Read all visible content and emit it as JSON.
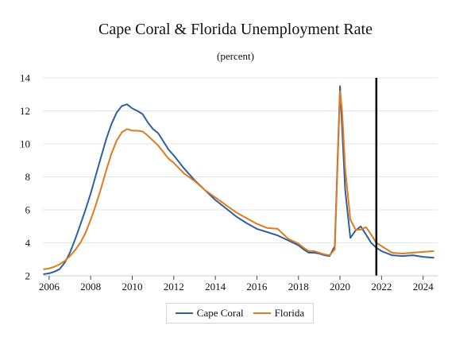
{
  "chart_data": {
    "type": "line",
    "title": "Cape Coral & Florida Unemployment Rate",
    "subtitle": "(percent)",
    "xlim": [
      2005.7,
      2024.7
    ],
    "ylim": [
      2,
      14
    ],
    "x_ticks": [
      2006,
      2008,
      2010,
      2012,
      2014,
      2016,
      2018,
      2020,
      2022,
      2024
    ],
    "y_ticks": [
      2,
      4,
      6,
      8,
      10,
      12,
      14
    ],
    "x_tick_labels": [
      "2006",
      "2008",
      "2010",
      "2012",
      "2014",
      "2016",
      "2018",
      "2020",
      "2022",
      "2024"
    ],
    "y_tick_labels": [
      "2",
      "4",
      "6",
      "8",
      "10",
      "12",
      "14"
    ],
    "grid": "horizontal",
    "legend_position": "bottom",
    "vertical_marker_x": 2021.75,
    "series": [
      {
        "name": "Cape Coral",
        "color": "#2e5fa1",
        "x": [
          2005.75,
          2006.0,
          2006.25,
          2006.5,
          2006.75,
          2007.0,
          2007.25,
          2007.5,
          2007.75,
          2008.0,
          2008.25,
          2008.5,
          2008.75,
          2009.0,
          2009.25,
          2009.5,
          2009.75,
          2010.0,
          2010.25,
          2010.5,
          2010.75,
          2011.0,
          2011.25,
          2011.5,
          2011.75,
          2012.0,
          2012.5,
          2013.0,
          2013.5,
          2014.0,
          2014.5,
          2015.0,
          2015.5,
          2016.0,
          2016.5,
          2017.0,
          2017.5,
          2018.0,
          2018.25,
          2018.5,
          2018.75,
          2019.0,
          2019.25,
          2019.5,
          2019.75,
          2020.0,
          2020.1,
          2020.25,
          2020.5,
          2020.75,
          2021.0,
          2021.25,
          2021.5,
          2021.75,
          2022.0,
          2022.5,
          2023.0,
          2023.5,
          2024.0,
          2024.5
        ],
        "values": [
          2.1,
          2.15,
          2.25,
          2.4,
          2.8,
          3.4,
          4.2,
          5.1,
          6.0,
          7.0,
          8.1,
          9.2,
          10.3,
          11.2,
          11.9,
          12.3,
          12.4,
          12.15,
          12.0,
          11.8,
          11.3,
          10.9,
          10.65,
          10.15,
          9.65,
          9.3,
          8.5,
          7.8,
          7.2,
          6.6,
          6.1,
          5.6,
          5.2,
          4.85,
          4.65,
          4.45,
          4.15,
          3.85,
          3.6,
          3.4,
          3.4,
          3.35,
          3.25,
          3.2,
          3.8,
          13.5,
          11.0,
          7.2,
          4.3,
          4.75,
          5.0,
          4.5,
          4.0,
          3.7,
          3.5,
          3.25,
          3.2,
          3.25,
          3.15,
          3.1
        ]
      },
      {
        "name": "Florida",
        "color": "#e07a1f",
        "x": [
          2005.75,
          2006.0,
          2006.25,
          2006.5,
          2006.75,
          2007.0,
          2007.25,
          2007.5,
          2007.75,
          2008.0,
          2008.25,
          2008.5,
          2008.75,
          2009.0,
          2009.25,
          2009.5,
          2009.75,
          2010.0,
          2010.25,
          2010.5,
          2010.75,
          2011.0,
          2011.25,
          2011.5,
          2011.75,
          2012.0,
          2012.5,
          2013.0,
          2013.5,
          2014.0,
          2014.5,
          2015.0,
          2015.5,
          2016.0,
          2016.5,
          2017.0,
          2017.5,
          2018.0,
          2018.25,
          2018.5,
          2018.75,
          2019.0,
          2019.25,
          2019.5,
          2019.75,
          2020.0,
          2020.1,
          2020.25,
          2020.5,
          2020.75,
          2021.0,
          2021.25,
          2021.5,
          2021.75,
          2022.0,
          2022.5,
          2023.0,
          2023.5,
          2024.0,
          2024.5
        ],
        "values": [
          2.4,
          2.45,
          2.55,
          2.7,
          2.9,
          3.2,
          3.55,
          4.0,
          4.6,
          5.4,
          6.3,
          7.3,
          8.4,
          9.4,
          10.2,
          10.7,
          10.9,
          10.8,
          10.8,
          10.75,
          10.5,
          10.2,
          9.9,
          9.5,
          9.1,
          8.85,
          8.2,
          7.75,
          7.2,
          6.75,
          6.3,
          5.85,
          5.5,
          5.15,
          4.9,
          4.85,
          4.25,
          3.95,
          3.7,
          3.5,
          3.5,
          3.4,
          3.3,
          3.25,
          3.6,
          13.2,
          12.0,
          8.5,
          5.4,
          4.8,
          4.8,
          4.95,
          4.5,
          4.0,
          3.8,
          3.4,
          3.35,
          3.4,
          3.45,
          3.5
        ]
      }
    ]
  }
}
